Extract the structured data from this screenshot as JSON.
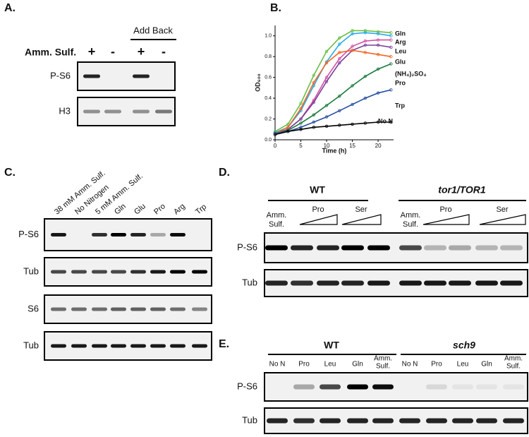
{
  "panel_a": {
    "label": "A.",
    "add_back": "Add Back",
    "row_label": "Amm. Sulf.",
    "conditions": [
      "+",
      "-",
      "+",
      "-"
    ],
    "blots": [
      "P-S6",
      "H3"
    ]
  },
  "chart_data": {
    "type": "line",
    "panel_label": "B.",
    "xlabel": "Time (h)",
    "ylabel": "OD₆₀₀",
    "x": [
      0,
      2.5,
      5,
      7.5,
      10,
      12.5,
      15,
      17.5,
      20,
      22.5
    ],
    "xlim": [
      0,
      23
    ],
    "xticks": [
      0,
      5,
      10,
      15,
      20
    ],
    "ylim": [
      0,
      1.1
    ],
    "yticks": [
      {
        "value": 0,
        "label": "0.0"
      },
      {
        "value": 0.2,
        "label": "0.2"
      },
      {
        "value": 0.4,
        "label": "0.4"
      },
      {
        "value": 0.6,
        "label": "0.6"
      },
      {
        "value": 0.8,
        "label": "0.8"
      },
      {
        "value": 1,
        "label": "1.0"
      }
    ],
    "series": [
      {
        "name": "Gln",
        "color": "#6abd45",
        "values": [
          0.08,
          0.15,
          0.35,
          0.62,
          0.85,
          0.98,
          1.05,
          1.05,
          1.04,
          1.03
        ]
      },
      {
        "name": "Arg",
        "color": "#29abe2",
        "values": [
          0.07,
          0.12,
          0.28,
          0.52,
          0.75,
          0.92,
          1.02,
          1.03,
          1.02,
          1.0
        ]
      },
      {
        "name": "Leu",
        "color": "#d14fa4",
        "values": [
          0.06,
          0.1,
          0.2,
          0.38,
          0.6,
          0.78,
          0.9,
          0.95,
          0.96,
          0.96
        ]
      },
      {
        "name": "Glu",
        "color": "#7b3f98",
        "values": [
          0.06,
          0.1,
          0.2,
          0.36,
          0.56,
          0.74,
          0.86,
          0.91,
          0.91,
          0.89
        ]
      },
      {
        "name": "(NH₄)₂SO₄",
        "color": "#f26522",
        "values": [
          0.06,
          0.12,
          0.3,
          0.55,
          0.74,
          0.84,
          0.86,
          0.84,
          0.82,
          0.8
        ]
      },
      {
        "name": "Pro",
        "color": "#1a7a3c",
        "values": [
          0.06,
          0.09,
          0.16,
          0.24,
          0.33,
          0.42,
          0.52,
          0.61,
          0.68,
          0.73
        ]
      },
      {
        "name": "Trp",
        "color": "#2b4fa3",
        "values": [
          0.06,
          0.08,
          0.12,
          0.17,
          0.22,
          0.28,
          0.34,
          0.4,
          0.45,
          0.48
        ]
      },
      {
        "name": "No N",
        "color": "#000000",
        "values": [
          0.05,
          0.08,
          0.1,
          0.12,
          0.13,
          0.14,
          0.15,
          0.16,
          0.17,
          0.17
        ]
      }
    ]
  },
  "panel_c": {
    "label": "C.",
    "lanes": [
      "38 mM Amm. Sulf.",
      "No Nitrogen",
      "5 mM Amm. Sulf.",
      "Gln",
      "Glu",
      "Pro",
      "Arg",
      "Trp"
    ],
    "blots": [
      "P-S6",
      "Tub",
      "S6",
      "Tub"
    ]
  },
  "panel_d": {
    "label": "D.",
    "groups": [
      "WT",
      "tor1/TOR1"
    ],
    "lanes": [
      [
        "Amm.",
        "Sulf."
      ],
      [
        "Pro"
      ],
      [
        "Ser"
      ],
      [
        "Amm.",
        "Sulf."
      ],
      [
        "Pro"
      ],
      [
        "Ser"
      ]
    ],
    "blots": [
      "P-S6",
      "Tub"
    ]
  },
  "panel_e": {
    "label": "E.",
    "groups": [
      "WT",
      "sch9"
    ],
    "lanes": [
      [
        "No N"
      ],
      [
        "Pro"
      ],
      [
        "Leu"
      ],
      [
        "Gln"
      ],
      [
        "Amm.",
        "Sulf."
      ],
      [
        "No N"
      ],
      [
        "Pro"
      ],
      [
        "Leu"
      ],
      [
        "Gln"
      ],
      [
        "Amm.",
        "Sulf."
      ]
    ],
    "blots": [
      "P-S6",
      "Tub"
    ]
  }
}
